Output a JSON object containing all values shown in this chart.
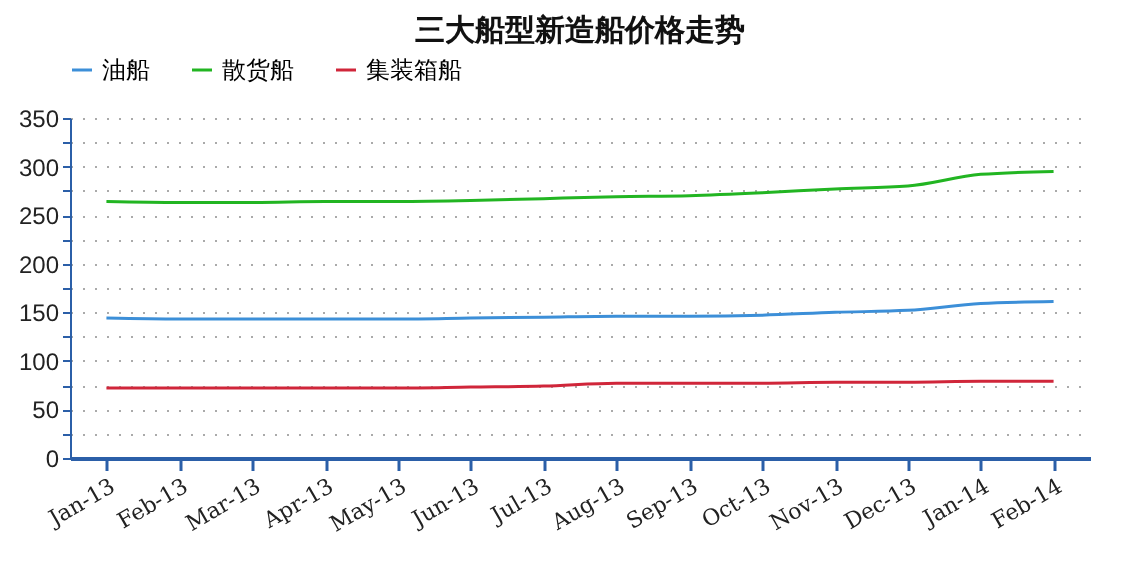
{
  "chart_data": {
    "type": "line",
    "title": "三大船型新造船价格走势",
    "categories": [
      "Jan-13",
      "Feb-13",
      "Mar-13",
      "Apr-13",
      "May-13",
      "Jun-13",
      "Jul-13",
      "Aug-13",
      "Sep-13",
      "Oct-13",
      "Nov-13",
      "Dec-13",
      "Jan-14",
      "Feb-14"
    ],
    "series": [
      {
        "name": "油船",
        "color": "#3c8fd8",
        "values": [
          144,
          143,
          143,
          143,
          143,
          144,
          145,
          146,
          146,
          147,
          150,
          152,
          159,
          161
        ]
      },
      {
        "name": "散货船",
        "color": "#22b522",
        "values": [
          264,
          263,
          263,
          264,
          264,
          265,
          267,
          269,
          270,
          273,
          277,
          280,
          292,
          295
        ]
      },
      {
        "name": "集装箱船",
        "color": "#d0263a",
        "values": [
          72,
          72,
          72,
          72,
          72,
          73,
          74,
          77,
          77,
          77,
          78,
          78,
          79,
          79
        ]
      }
    ],
    "ylim": [
      0,
      350
    ],
    "yticks": [
      0,
      {
        "value": 25,
        "label": null
      },
      50,
      {
        "value": 75,
        "label": null
      },
      100,
      {
        "value": 125,
        "label": null
      },
      150,
      {
        "value": 175,
        "label": null
      },
      200,
      {
        "value": 225,
        "label": null
      },
      250,
      {
        "value": 275,
        "label": null
      },
      300,
      {
        "value": 325,
        "label": null
      },
      350
    ],
    "grid": "y",
    "legend": "top",
    "marker": "none",
    "line_style": "solid"
  }
}
